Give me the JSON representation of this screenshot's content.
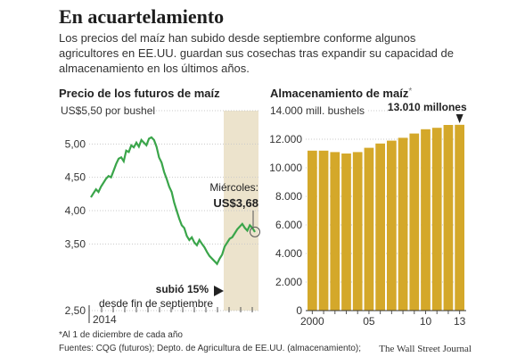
{
  "title": "En acuartelamiento",
  "subtitle": "Los precios del maíz han subido desde septiembre conforme algunos agricultores en EE.UU. guardan sus cosechas tras expandir su capacidad de almacenamiento en los últimos años.",
  "chart_data": [
    {
      "type": "line",
      "title": "Precio de los futuros de maíz",
      "unit_label": "US$5,50 por bushel",
      "yticks": [
        "5,00",
        "4,50",
        "4,00",
        "3,50",
        "2,50"
      ],
      "ytick_values": [
        5.0,
        4.5,
        4.0,
        3.5,
        2.5
      ],
      "ylim": [
        2.5,
        5.5
      ],
      "xlabel_start": "2014",
      "annotation_label": "Miércoles:",
      "annotation_value": "US$3,68",
      "annotation_rise": "subió 15%",
      "annotation_rise_sub": "desde fin de septiembre",
      "line_color": "#3aa54a",
      "shade_color": "#ece3cc",
      "values": [
        4.2,
        4.26,
        4.32,
        4.28,
        4.36,
        4.42,
        4.48,
        4.52,
        4.5,
        4.6,
        4.7,
        4.78,
        4.8,
        4.74,
        4.9,
        4.88,
        4.98,
        4.95,
        5.02,
        4.96,
        5.06,
        5.02,
        4.98,
        5.08,
        5.1,
        5.06,
        4.96,
        4.8,
        4.72,
        4.58,
        4.48,
        4.36,
        4.28,
        4.12,
        4.0,
        3.88,
        3.78,
        3.74,
        3.62,
        3.56,
        3.6,
        3.52,
        3.48,
        3.56,
        3.5,
        3.45,
        3.38,
        3.32,
        3.28,
        3.24,
        3.2,
        3.28,
        3.34,
        3.46,
        3.52,
        3.58,
        3.6,
        3.66,
        3.72,
        3.76,
        3.8,
        3.74,
        3.7,
        3.78,
        3.74,
        3.68
      ]
    },
    {
      "type": "bar",
      "title": "Almacenamiento de maíz",
      "title_marker": "*",
      "unit_label": "14.000 mill. bushels",
      "yticks": [
        "12.000",
        "10.000",
        "8.000",
        "6.000",
        "4.000",
        "2.000",
        "0"
      ],
      "ytick_values": [
        12000,
        10000,
        8000,
        6000,
        4000,
        2000,
        0
      ],
      "ylim": [
        0,
        14000
      ],
      "categories": [
        "2000",
        "2001",
        "2002",
        "2003",
        "2004",
        "2005",
        "2006",
        "2007",
        "2008",
        "2009",
        "2010",
        "2011",
        "2012",
        "2013"
      ],
      "values": [
        11200,
        11200,
        11100,
        11000,
        11100,
        11400,
        11700,
        11900,
        12100,
        12400,
        12700,
        12800,
        13000,
        13010
      ],
      "xtick_labels": [
        "2000",
        "05",
        "10",
        "13"
      ],
      "annotation_value": "13.010 millones",
      "bar_color": "#d4a82a"
    }
  ],
  "footnotes": {
    "asterisk_note": "*Al 1 de diciembre de cada año",
    "sources": "Fuentes: CQG (futuros); Depto. de Agricultura de EE.UU. (almacenamiento);",
    "credit": "The Wall Street Journal"
  }
}
